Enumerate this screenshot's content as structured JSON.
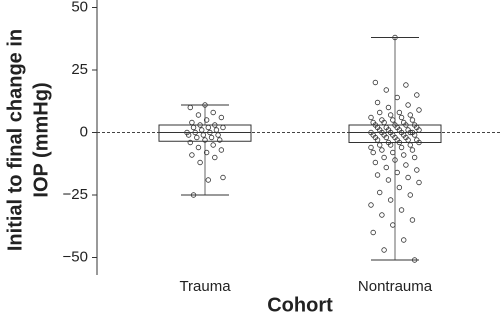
{
  "chart_data": {
    "type": "box",
    "ylabel": [
      "Initial to final change in",
      "IOP (mmHg)"
    ],
    "xlabel": "Cohort",
    "categories": [
      "Trauma",
      "Nontrauma"
    ],
    "boxes": [
      {
        "whisker_low": -25,
        "q1": -3.5,
        "median": 0,
        "q3": 3,
        "whisker_high": 11
      },
      {
        "whisker_low": -51,
        "q1": -4,
        "median": 0,
        "q3": 3,
        "whisker_high": 38
      }
    ],
    "points": [
      [
        11,
        10,
        8,
        7,
        6,
        5,
        4,
        3,
        3,
        2,
        2,
        2,
        1,
        1,
        0,
        0,
        0,
        -1,
        -1,
        -1,
        -2,
        -2,
        -3,
        -3,
        -4,
        -5,
        -6,
        -7,
        -8,
        -9,
        -10,
        -12,
        -18,
        -19,
        -25
      ],
      [
        38,
        20,
        19,
        17,
        15,
        14,
        12,
        11,
        10,
        9,
        8,
        8,
        7,
        7,
        6,
        6,
        5,
        5,
        5,
        4,
        4,
        4,
        3,
        3,
        3,
        3,
        2,
        2,
        2,
        2,
        1,
        1,
        1,
        1,
        1,
        0,
        0,
        0,
        0,
        0,
        0,
        -1,
        -1,
        -1,
        -1,
        -1,
        -2,
        -2,
        -2,
        -2,
        -3,
        -3,
        -3,
        -3,
        -4,
        -4,
        -4,
        -5,
        -5,
        -5,
        -6,
        -6,
        -7,
        -7,
        -8,
        -8,
        -9,
        -10,
        -10,
        -11,
        -12,
        -13,
        -14,
        -15,
        -16,
        -17,
        -18,
        -19,
        -20,
        -22,
        -24,
        -25,
        -27,
        -29,
        -31,
        -33,
        -35,
        -37,
        -40,
        -43,
        -47,
        -51
      ]
    ],
    "reference_line": 0,
    "ylim": [
      -57,
      53
    ],
    "yticks": [
      {
        "value": -50,
        "label": "−50"
      },
      {
        "value": -25,
        "label": "−25"
      },
      0,
      25,
      50
    ]
  }
}
